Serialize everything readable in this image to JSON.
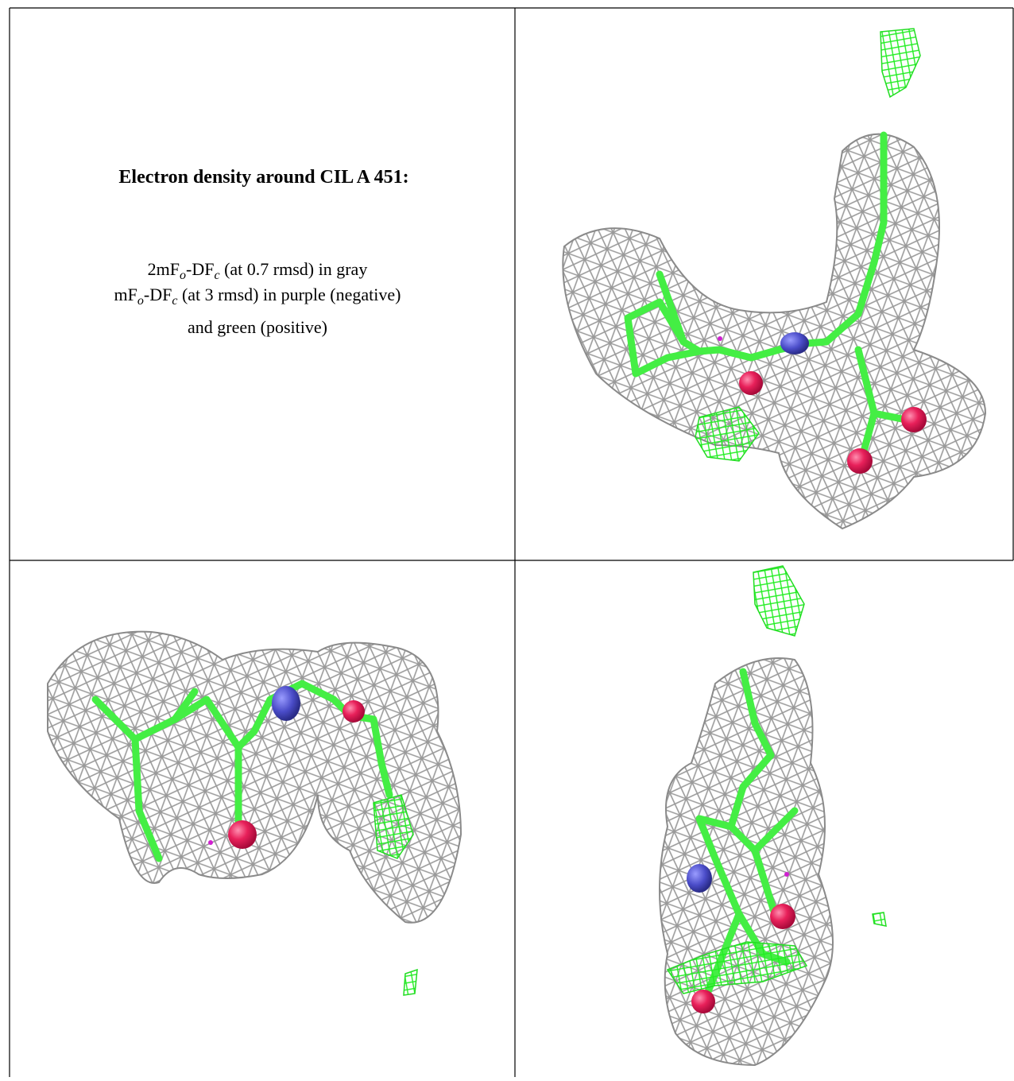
{
  "header": {
    "title": "Electron density around CIL A 451:"
  },
  "legend": {
    "lines": [
      [
        "2mF",
        "o",
        "-DF",
        "c",
        " (at 0.7 rmsd) in gray"
      ],
      [
        "mF",
        "o",
        "-DF",
        "c",
        " (at 3 rmsd) in purple (negative)"
      ],
      [
        "and green (positive)"
      ]
    ]
  }
}
